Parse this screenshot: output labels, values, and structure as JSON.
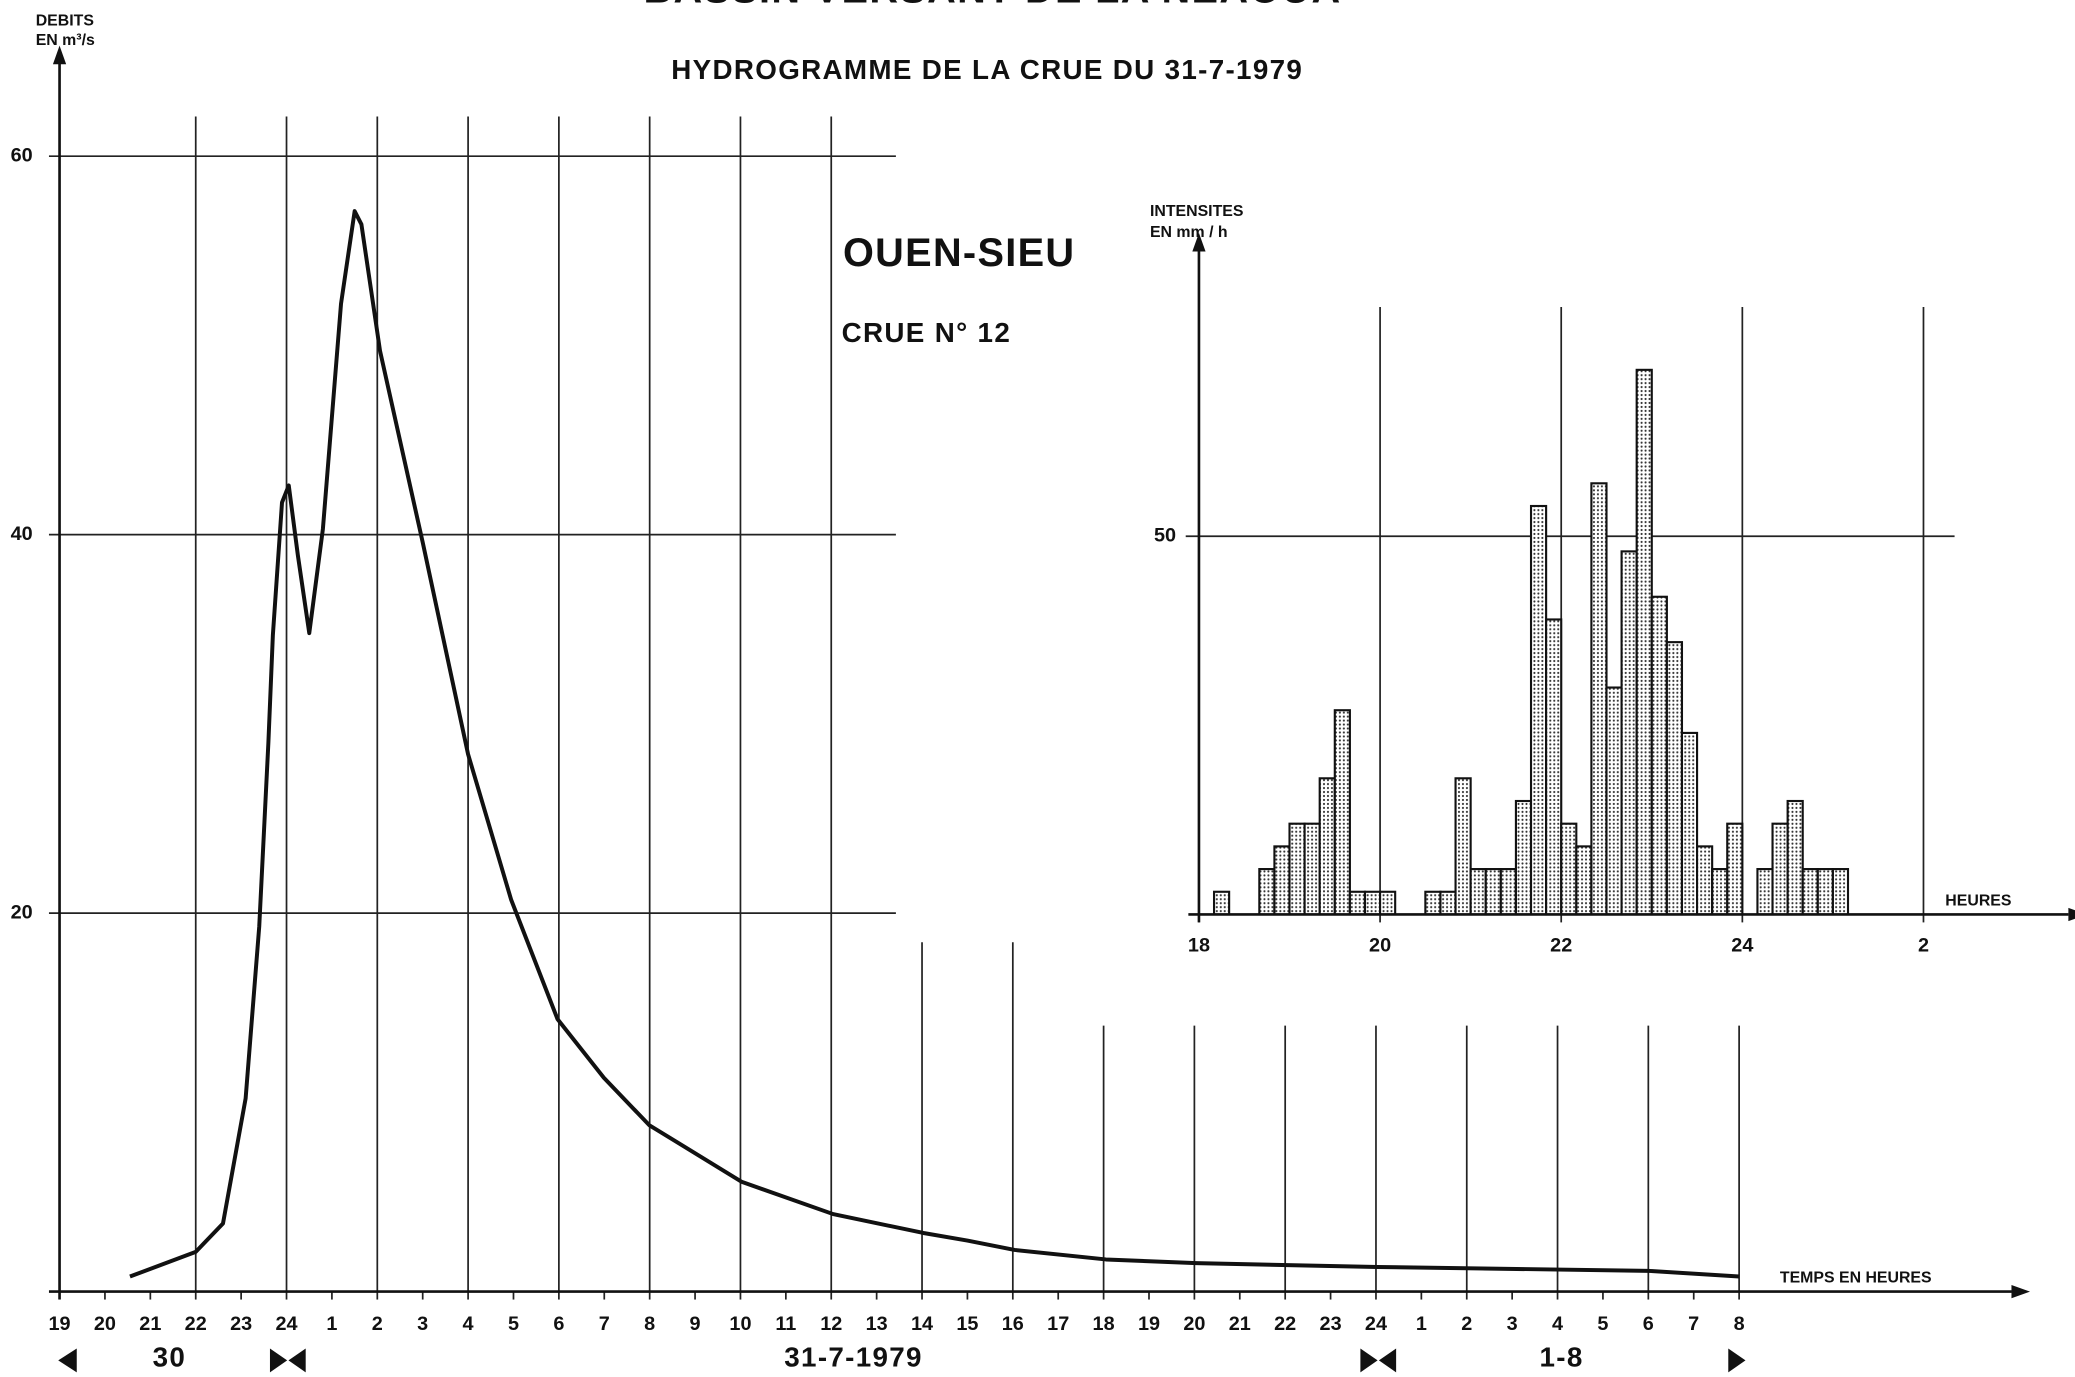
{
  "chart_data": [
    {
      "type": "line",
      "suptitle": "BASSIN VERSANT DE LA NEAOUA",
      "title": "HYDROGRAMME DE LA CRUE DU 31-7-1979",
      "annotations": [
        "OUEN-SIEU",
        "CRUE N° 12"
      ],
      "ylabel": [
        "DEBITS",
        "EN m³/s"
      ],
      "xlabel": "TEMPS EN HEURES",
      "day_labels": [
        "30",
        "31-7-1979",
        "1-8"
      ],
      "x": [
        20.55,
        22,
        22.6,
        23.1,
        23.4,
        23.6,
        23.7,
        23.9,
        24.05,
        24.25,
        24.5,
        24.8,
        25.2,
        25.5,
        25.65,
        26.06,
        27.0,
        28.0,
        28.95,
        29.97,
        30.99,
        31.99,
        34.03,
        36.04,
        38.03,
        39.0,
        40.04,
        42.05,
        44.04,
        48.03,
        54.0,
        56.0
      ],
      "values": [
        0.8,
        2.1,
        3.6,
        10.2,
        19.3,
        29,
        34.7,
        41.7,
        42.6,
        38.9,
        34.8,
        40.3,
        52.2,
        57.1,
        56.4,
        49.7,
        39.6,
        28.4,
        20.7,
        14.4,
        11.3,
        8.8,
        5.8,
        4.1,
        3.1,
        2.7,
        2.2,
        1.7,
        1.5,
        1.3,
        1.1,
        0.8
      ],
      "color": "#111111",
      "xlim": [
        19,
        62
      ],
      "ylim": [
        0,
        65
      ],
      "yticks": [
        20,
        40,
        60
      ],
      "xticks": [
        19,
        20,
        21,
        22,
        23,
        24,
        {
          "value": 25,
          "label": "1"
        },
        {
          "value": 26,
          "label": "2"
        },
        {
          "value": 27,
          "label": "3"
        },
        {
          "value": 28,
          "label": "4"
        },
        {
          "value": 29,
          "label": "5"
        },
        {
          "value": 30,
          "label": "6"
        },
        {
          "value": 31,
          "label": "7"
        },
        {
          "value": 32,
          "label": "8"
        },
        {
          "value": 33,
          "label": "9"
        },
        {
          "value": 34,
          "label": "10"
        },
        {
          "value": 35,
          "label": "11"
        },
        {
          "value": 36,
          "label": "12"
        },
        {
          "value": 37,
          "label": "13"
        },
        {
          "value": 38,
          "label": "14"
        },
        {
          "value": 39,
          "label": "15"
        },
        {
          "value": 40,
          "label": "16"
        },
        {
          "value": 41,
          "label": "17"
        },
        {
          "value": 42,
          "label": "18"
        },
        {
          "value": 43,
          "label": "19"
        },
        {
          "value": 44,
          "label": "20"
        },
        {
          "value": 45,
          "label": "21"
        },
        {
          "value": 46,
          "label": "22"
        },
        {
          "value": 47,
          "label": "23"
        },
        {
          "value": 48,
          "label": "24"
        },
        {
          "value": 49,
          "label": "1"
        },
        {
          "value": 50,
          "label": "2"
        },
        {
          "value": 51,
          "label": "3"
        },
        {
          "value": 52,
          "label": "4"
        },
        {
          "value": 53,
          "label": "5"
        },
        {
          "value": 54,
          "label": "6"
        },
        {
          "value": 55,
          "label": "7"
        },
        {
          "value": 56,
          "label": "8"
        }
      ],
      "grid": true
    },
    {
      "type": "histogram",
      "ylabel": [
        "INTENSITES",
        "EN mm / h"
      ],
      "xlabel": "HEURES",
      "bins": [
        18.1667,
        18.3333,
        18.5,
        18.6667,
        18.8333,
        19,
        19.1667,
        19.3333,
        19.5,
        19.6667,
        19.8333,
        20,
        20.1667,
        20.3333,
        20.5,
        20.6667,
        20.8333,
        21,
        21.1667,
        21.3333,
        21.5,
        21.6667,
        21.8333,
        22,
        22.1667,
        22.3333,
        22.5,
        22.6667,
        22.8333,
        23,
        23.1667,
        23.3333,
        23.5,
        23.6667,
        23.8333,
        24,
        24.1667,
        24.3333,
        24.5,
        24.6667,
        24.8333,
        25,
        25.1667
      ],
      "counts": [
        3,
        0,
        0,
        6,
        9,
        12,
        12,
        18,
        27,
        3,
        3,
        3,
        0,
        0,
        3,
        3,
        18,
        6,
        6,
        6,
        15,
        54,
        39,
        12,
        9,
        57,
        30,
        48,
        72,
        42,
        36,
        24,
        9,
        6,
        12,
        0,
        6,
        12,
        15,
        6,
        6,
        6
      ],
      "color": "#111111",
      "xlim": [
        18,
        27.6
      ],
      "ylim": [
        0,
        88
      ],
      "yticks": [
        50
      ],
      "xticks": [
        18,
        20,
        22,
        24,
        {
          "value": 26,
          "label": "2"
        }
      ],
      "grid": true
    }
  ]
}
